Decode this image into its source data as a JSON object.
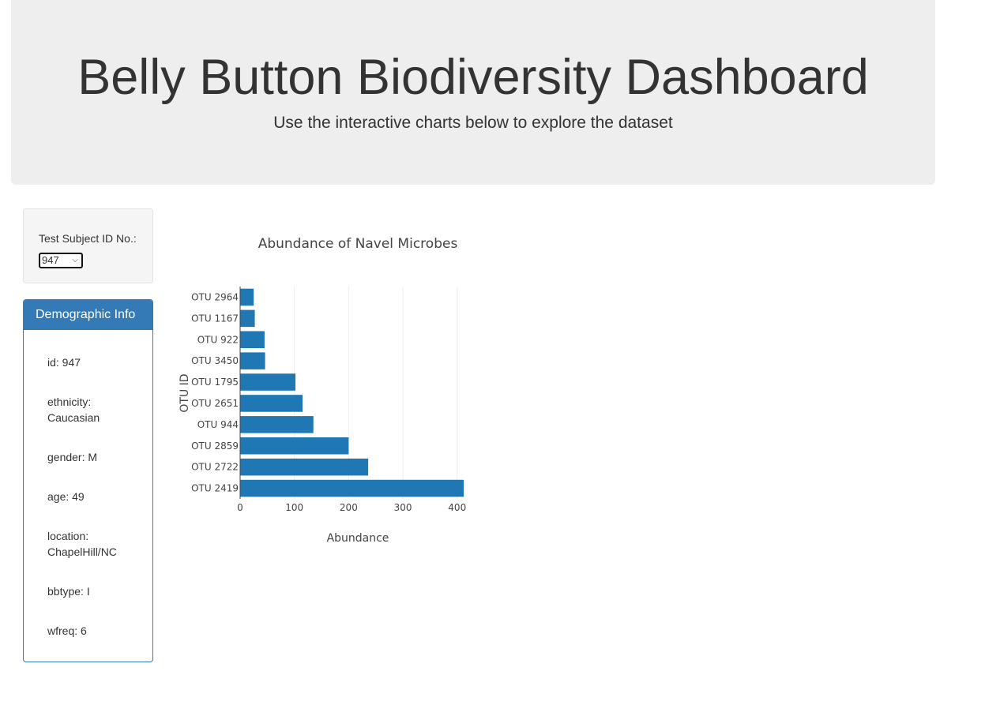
{
  "header": {
    "title": "Belly Button Biodiversity Dashboard",
    "subtitle": "Use the interactive charts below to explore the dataset"
  },
  "selector": {
    "label": "Test Subject ID No.:",
    "selected": "947"
  },
  "demographic": {
    "heading": "Demographic Info",
    "rows": [
      "id: 947",
      "ethnicity: Caucasian",
      "gender: M",
      "age: 49",
      "location: ChapelHill/NC",
      "bbtype: I",
      "wfreq: 6"
    ]
  },
  "colors": {
    "bar": "#1f77b4",
    "panel": "#337ab7"
  },
  "chart_data": {
    "type": "bar",
    "orientation": "horizontal",
    "title": "Abundance of Navel Microbes",
    "xlabel": "Abundance",
    "ylabel": "OTU ID",
    "xlim": [
      0,
      412
    ],
    "xticks": [
      0,
      100,
      200,
      300,
      400
    ],
    "grid": true,
    "categories": [
      "OTU 2964",
      "OTU 1167",
      "OTU 922",
      "OTU 3450",
      "OTU 1795",
      "OTU 2651",
      "OTU 944",
      "OTU 2859",
      "OTU 2722",
      "OTU 2419"
    ],
    "values": [
      25,
      27,
      45,
      46,
      102,
      115,
      135,
      200,
      236,
      412
    ]
  }
}
